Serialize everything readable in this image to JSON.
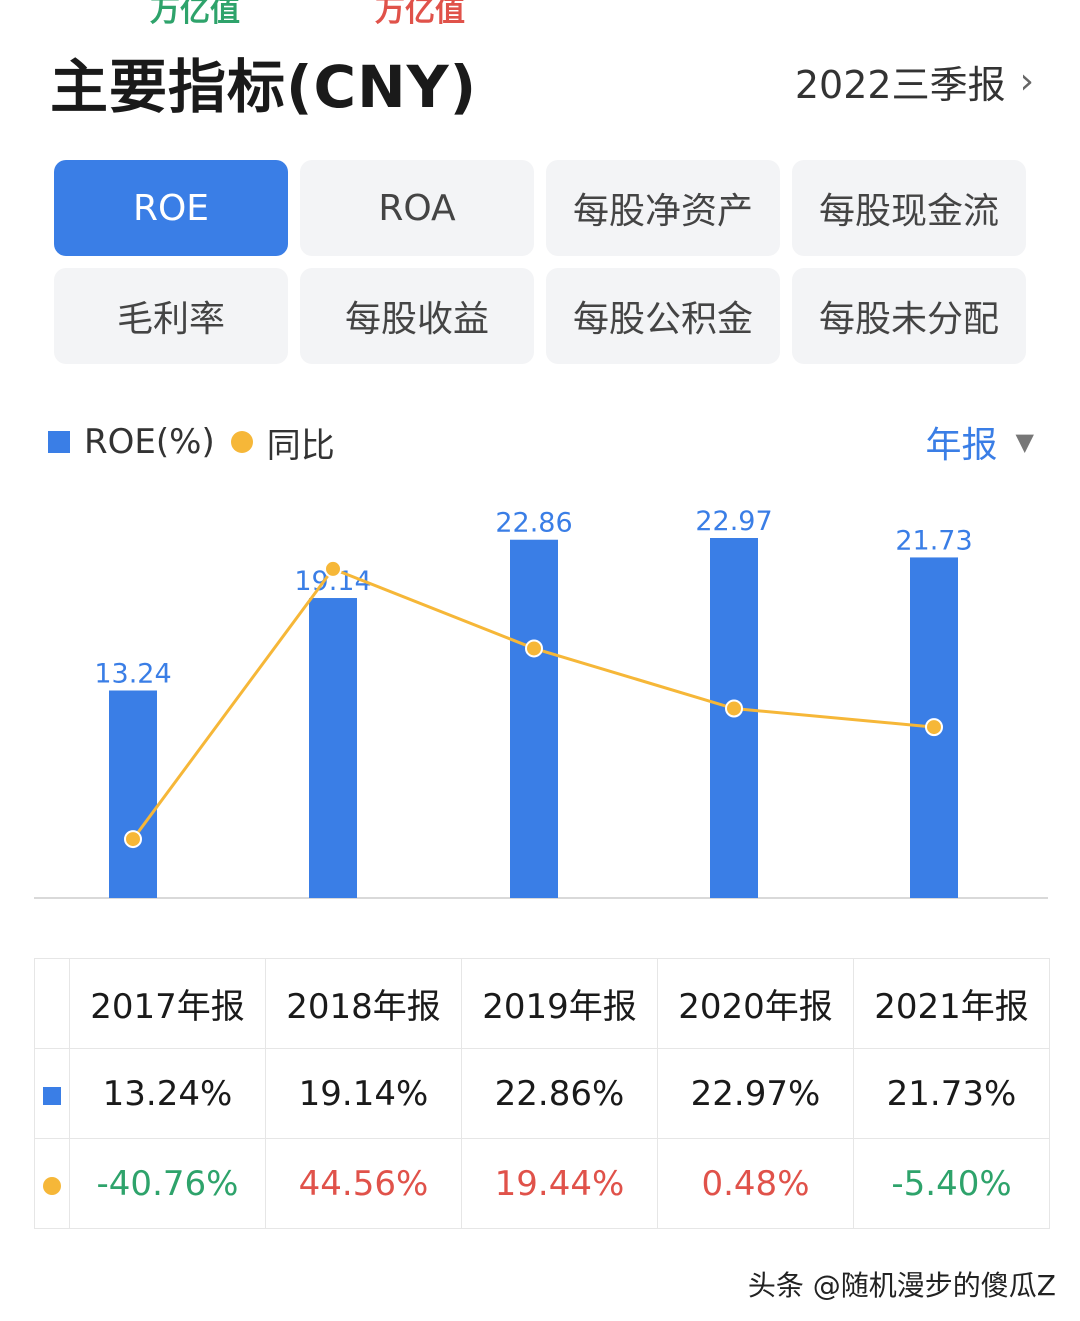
{
  "cutoff_text": {
    "left": "万亿值",
    "right": "万亿值"
  },
  "header": {
    "title": "主要指标(CNY)",
    "period": "2022三季报"
  },
  "tabs": [
    "ROE",
    "ROA",
    "每股净资产",
    "每股现金流",
    "毛利率",
    "每股收益",
    "每股公积金",
    "每股未分配"
  ],
  "active_tab": "ROE",
  "legend": {
    "bar_label": "ROE(%)",
    "line_label": "同比",
    "period_select": "年报"
  },
  "colors": {
    "bar": "#3a7ee6",
    "line": "#f6b738",
    "positive": "#e0524a",
    "negative": "#2ea36b",
    "label": "#3a7ee6"
  },
  "chart_data": {
    "type": "bar",
    "categories": [
      "2017年报",
      "2018年报",
      "2019年报",
      "2020年报",
      "2021年报"
    ],
    "series": [
      {
        "name": "ROE(%)",
        "type": "bar",
        "values": [
          13.24,
          19.14,
          22.86,
          22.97,
          21.73
        ]
      },
      {
        "name": "同比",
        "type": "line",
        "values": [
          -40.76,
          44.56,
          19.44,
          0.48,
          -5.4
        ]
      }
    ],
    "data_labels": [
      "13.24",
      "19.14",
      "22.86",
      "22.97",
      "21.73"
    ],
    "grid": false,
    "legend_position": "top-left"
  },
  "table": {
    "headers": [
      "2017年报",
      "2018年报",
      "2019年报",
      "2020年报",
      "2021年报"
    ],
    "roe_row": [
      "13.24%",
      "19.14%",
      "22.86%",
      "22.97%",
      "21.73%"
    ],
    "yoy_row": [
      "-40.76%",
      "44.56%",
      "19.44%",
      "0.48%",
      "-5.40%"
    ]
  },
  "watermark": "头条 @随机漫步的傻瓜Z"
}
